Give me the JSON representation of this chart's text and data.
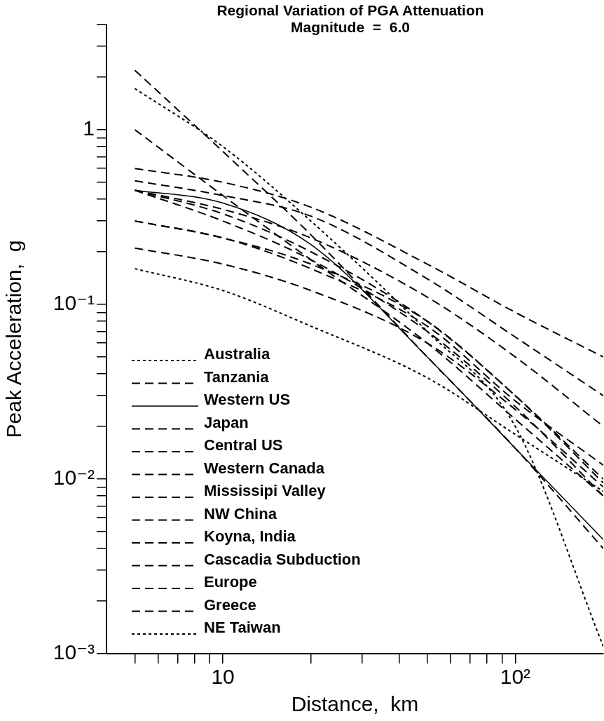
{
  "chart_data": {
    "type": "line",
    "title": "Regional Variation of PGA Attenuation",
    "subtitle": "Magnitude  =  6.0",
    "xlabel": "Distance,  km",
    "ylabel": "Peak Acceleration,  g",
    "log": "xy",
    "grid": false,
    "legend": "bottom left",
    "marker": "none",
    "x": [
      5,
      10,
      20,
      50,
      100,
      200
    ],
    "xlim": [
      4,
      200
    ],
    "xticks": [
      {
        "value": 5,
        "label": null
      },
      {
        "value": 6,
        "label": null
      },
      {
        "value": 7,
        "label": null
      },
      {
        "value": 8,
        "label": null
      },
      {
        "value": 9,
        "label": null
      },
      10,
      {
        "value": 20,
        "label": null
      },
      {
        "value": 30,
        "label": null
      },
      {
        "value": 40,
        "label": null
      },
      {
        "value": 50,
        "label": null
      },
      {
        "value": 60,
        "label": null
      },
      {
        "value": 70,
        "label": null
      },
      {
        "value": 80,
        "label": null
      },
      {
        "value": 90,
        "label": null
      },
      {
        "value": 100,
        "label": "10²"
      }
    ],
    "ylim": [
      0.001,
      4
    ],
    "yticks": [
      {
        "value": 0.001,
        "label": "10⁻³"
      },
      {
        "value": 0.002,
        "label": null
      },
      {
        "value": 0.003,
        "label": null
      },
      {
        "value": 0.004,
        "label": null
      },
      {
        "value": 0.005,
        "label": null
      },
      {
        "value": 0.006,
        "label": null
      },
      {
        "value": 0.007,
        "label": null
      },
      {
        "value": 0.008,
        "label": null
      },
      {
        "value": 0.009,
        "label": null
      },
      {
        "value": 0.01,
        "label": "10⁻²"
      },
      {
        "value": 0.02,
        "label": null
      },
      {
        "value": 0.03,
        "label": null
      },
      {
        "value": 0.04,
        "label": null
      },
      {
        "value": 0.05,
        "label": null
      },
      {
        "value": 0.06,
        "label": null
      },
      {
        "value": 0.07,
        "label": null
      },
      {
        "value": 0.08,
        "label": null
      },
      {
        "value": 0.09,
        "label": null
      },
      {
        "value": 0.1,
        "label": "10⁻¹"
      },
      {
        "value": 0.2,
        "label": null
      },
      {
        "value": 0.3,
        "label": null
      },
      {
        "value": 0.4,
        "label": null
      },
      {
        "value": 0.5,
        "label": null
      },
      {
        "value": 0.6,
        "label": null
      },
      {
        "value": 0.7,
        "label": null
      },
      {
        "value": 0.8,
        "label": null
      },
      {
        "value": 0.9,
        "label": null
      },
      1,
      {
        "value": 2,
        "label": null
      },
      {
        "value": 3,
        "label": null
      },
      {
        "value": 4,
        "label": null
      }
    ],
    "series": [
      {
        "name": "Australia",
        "color": "#000000",
        "line_style": "dotted",
        "values": [
          0.16,
          0.12,
          0.075,
          0.038,
          0.018,
          0.0085
        ]
      },
      {
        "name": "Tanzania",
        "color": "#000000",
        "line_style": "dashed",
        "values": [
          2.19,
          0.75,
          0.25,
          0.05,
          0.015,
          0.004
        ]
      },
      {
        "name": "Western US",
        "color": "#000000",
        "line_style": "solid",
        "values": [
          0.45,
          0.38,
          0.22,
          0.05,
          0.015,
          0.0045
        ]
      },
      {
        "name": "Japan",
        "color": "#000000",
        "line_style": "dashed",
        "values": [
          0.6,
          0.5,
          0.36,
          0.17,
          0.09,
          0.05
        ]
      },
      {
        "name": "Central US",
        "color": "#000000",
        "line_style": "dashed",
        "values": [
          0.51,
          0.42,
          0.32,
          0.14,
          0.065,
          0.03
        ]
      },
      {
        "name": "Western Canada",
        "color": "#000000",
        "line_style": "dashed",
        "values": [
          1.0,
          0.42,
          0.18,
          0.06,
          0.022,
          0.008
        ]
      },
      {
        "name": "Mississipi Valley",
        "color": "#000000",
        "line_style": "dashed",
        "values": [
          0.45,
          0.35,
          0.24,
          0.11,
          0.05,
          0.02
        ]
      },
      {
        "name": "NW China",
        "color": "#000000",
        "line_style": "dashed",
        "values": [
          0.21,
          0.17,
          0.12,
          0.06,
          0.025,
          0.009
        ]
      },
      {
        "name": "Koyna, India",
        "color": "#000000",
        "line_style": "dashed",
        "values": [
          0.3,
          0.24,
          0.17,
          0.08,
          0.03,
          0.01
        ]
      },
      {
        "name": "Cascadia Subduction",
        "color": "#000000",
        "line_style": "dashed",
        "values": [
          0.45,
          0.33,
          0.2,
          0.08,
          0.03,
          0.0095
        ]
      },
      {
        "name": "Europe",
        "color": "#000000",
        "line_style": "dashed",
        "values": [
          0.45,
          0.3,
          0.18,
          0.07,
          0.026,
          0.008
        ]
      },
      {
        "name": "Greece",
        "color": "#000000",
        "line_style": "dashed",
        "values": [
          0.3,
          0.24,
          0.16,
          0.075,
          0.028,
          0.012
        ]
      },
      {
        "name": "NE Taiwan",
        "color": "#000000",
        "line_style": "dotted",
        "values": [
          1.72,
          0.8,
          0.3,
          0.07,
          0.02,
          0.0011
        ]
      }
    ]
  }
}
